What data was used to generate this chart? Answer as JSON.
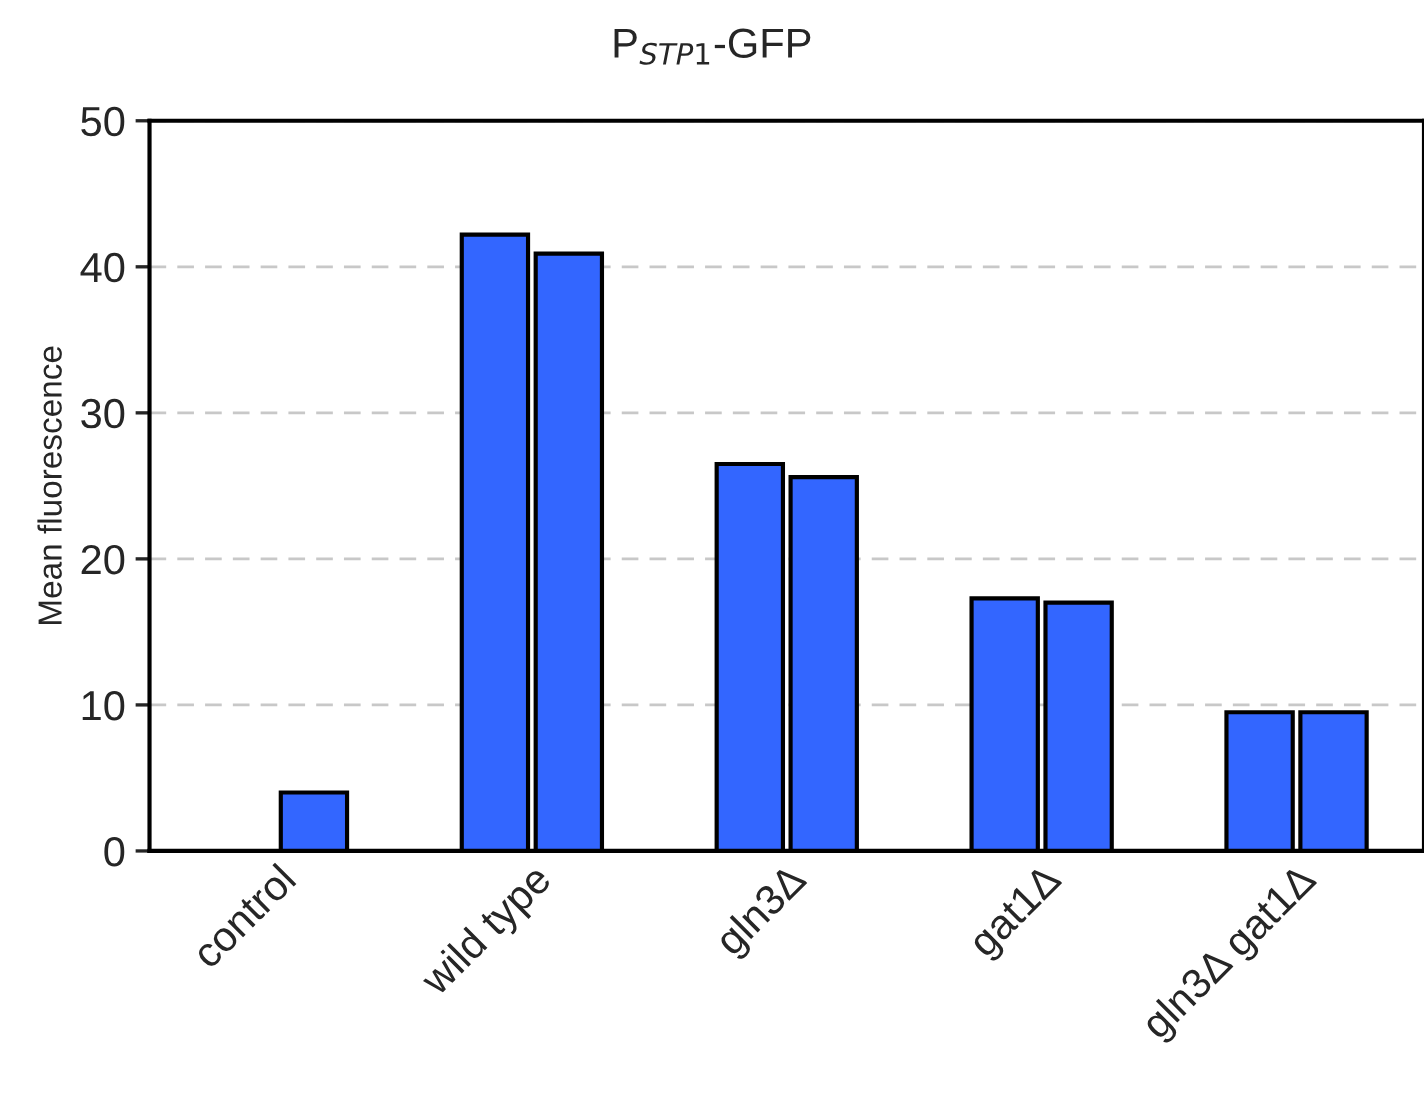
{
  "chart_data": {
    "type": "bar",
    "title": "P$_{STP1}$-GFP",
    "ylabel": "Mean fluorescence",
    "categories": [
      "control",
      "wild type",
      "gln3Δ",
      "gat1Δ",
      "gln3Δ gat1Δ"
    ],
    "series": [
      {
        "color": "#3366ff",
        "values": [
          null,
          42.2,
          26.5,
          17.3,
          9.5
        ]
      },
      {
        "color": "#3366ff",
        "values": [
          4.0,
          40.9,
          25.6,
          17.0,
          9.5
        ]
      }
    ],
    "ylim": [
      0,
      50
    ],
    "yticks": [
      0,
      10,
      20,
      30,
      40,
      50
    ],
    "grid": "y",
    "legend": false
  }
}
